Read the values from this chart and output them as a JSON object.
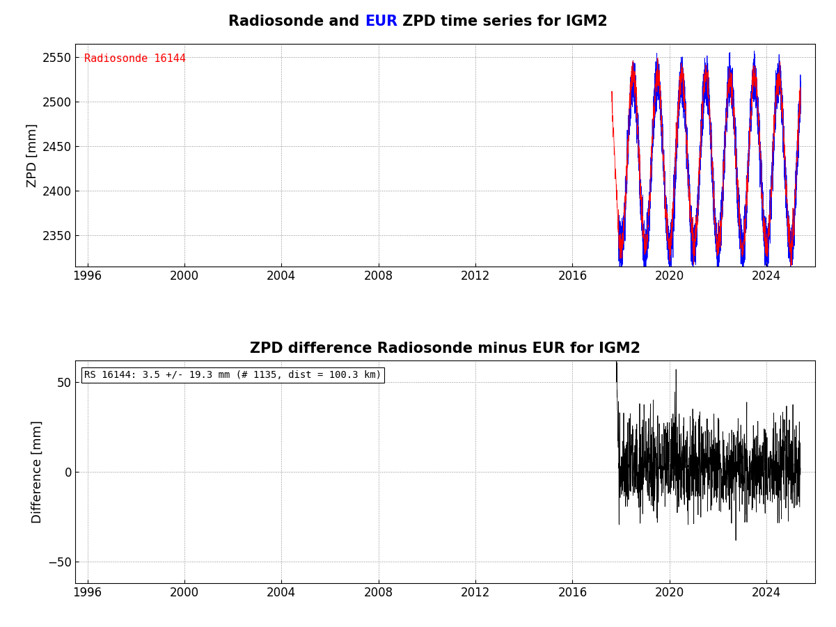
{
  "title1_parts": [
    "Radiosonde and ",
    "EUR",
    " ZPD time series for IGM2"
  ],
  "title1_colors": [
    "black",
    "blue",
    "black"
  ],
  "title2": "ZPD difference Radiosonde minus EUR for IGM2",
  "ylabel1": "ZPD [mm]",
  "ylabel2": "Difference [mm]",
  "xlim": [
    1995.5,
    2026.0
  ],
  "xticks": [
    1996,
    2000,
    2004,
    2008,
    2012,
    2016,
    2020,
    2024
  ],
  "ylim1": [
    2315,
    2565
  ],
  "yticks1": [
    2350,
    2400,
    2450,
    2500,
    2550
  ],
  "ylim2": [
    -62,
    62
  ],
  "yticks2": [
    -50,
    0,
    50
  ],
  "legend_label": "Radiosonde 16144",
  "legend_color": "red",
  "annotation": "RS 16144: 3.5 +/- 19.3 mm (# 1135, dist = 100.3 km)",
  "data_start_eur": 2017.9,
  "data_start_rs": 2017.6,
  "data_end": 2025.4,
  "red_color": "#ff0000",
  "blue_color": "#0000ff",
  "black_color": "#000000",
  "bg_color": "#ffffff",
  "grid_color": "#888888",
  "title_fontsize": 15,
  "label_fontsize": 13,
  "tick_fontsize": 12,
  "annotation_fontsize": 10,
  "legend_fontsize": 11
}
